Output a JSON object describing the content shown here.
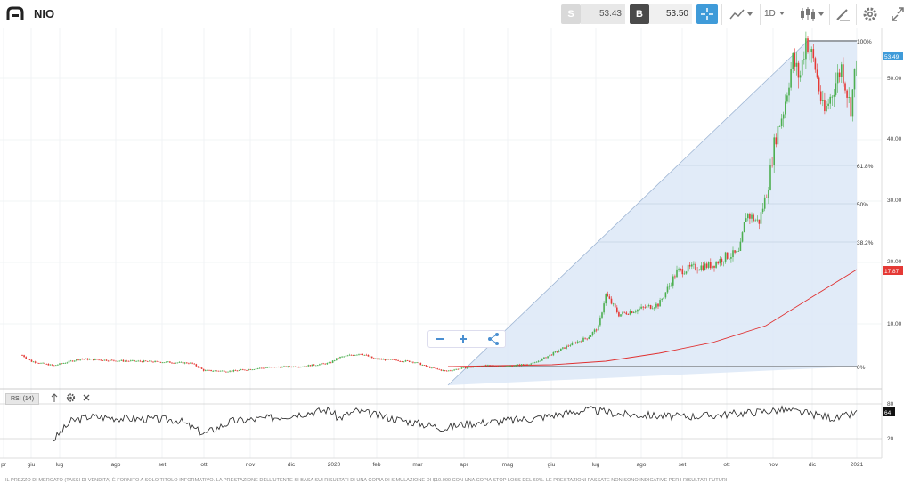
{
  "header": {
    "symbol": "NIO",
    "sell_label": "S",
    "sell_price": "53.43",
    "buy_label": "B",
    "buy_price": "53.50",
    "timeframe": "1D",
    "accent": "#3f9bd9"
  },
  "chart": {
    "right_axis": [
      "50.00",
      "40.00",
      "30.00",
      "20.00",
      "10.00"
    ],
    "fib_labels": [
      "100%",
      "61.8%",
      "50%",
      "38.2%",
      "0%"
    ],
    "current_price": "53.49",
    "ma_value": "17.87",
    "x_axis": [
      "pr",
      "giu",
      "lug",
      "ago",
      "set",
      "ott",
      "nov",
      "dic",
      "2020",
      "feb",
      "mar",
      "apr",
      "mag",
      "giu",
      "lug",
      "ago",
      "set",
      "ott",
      "nov",
      "dic",
      "2021"
    ],
    "ma_color": "#e03030",
    "up_color": "#4caf50",
    "down_color": "#e53935"
  },
  "rsi": {
    "label": "RSI (14)",
    "value": "64",
    "level_high": "80",
    "level_low": "20"
  },
  "footer": {
    "disclaimer": "IL PREZZO DI MERCATO (TASSI DI VENDITA) È FORNITO A SOLO TITOLO INFORMATIVO. LA PRESTAZIONE DELL'UTENTE SI BASA SUI RISULTATI DI UNA COPIA DI SIMULAZIONE DI $10.000 CON UNA COPIA STOP LOSS DEL 60%. LE PRESTAZIONI PASSATE NON SONO INDICATIVE PER I RISULTATI FUTURI"
  }
}
